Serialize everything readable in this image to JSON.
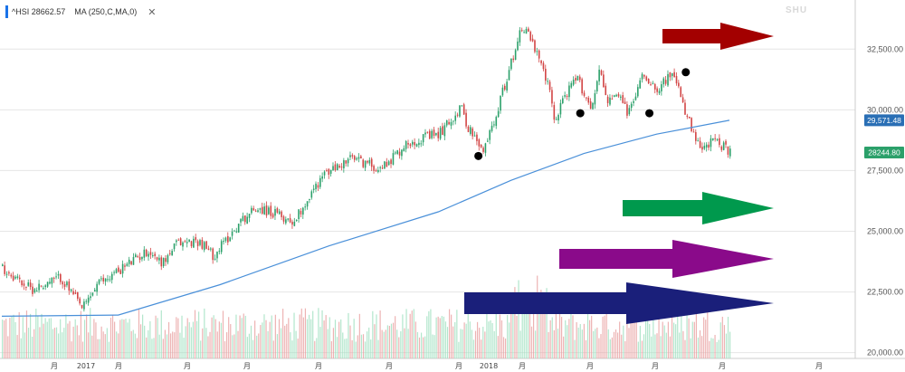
{
  "legend": {
    "symbol_label": "^HSI 28662.57",
    "ma_label": "MA (250,C,MA,0)",
    "close_icon": "close-icon",
    "close_glyph": "✕"
  },
  "watermark": "SHU",
  "chart_data": {
    "type": "candlestick",
    "title": "",
    "y_axis": {
      "range": [
        19800,
        34300
      ],
      "ticks": [
        20000,
        22500,
        25000,
        27500,
        30000,
        32500
      ],
      "tick_labels": [
        "20,000.00",
        "22,500.00",
        "25,000.00",
        "27,500.00",
        "30,000.00",
        "32,500.00"
      ],
      "position": "right"
    },
    "x_axis": {
      "labels": [
        "月",
        "2017",
        "月",
        "月",
        "月",
        "月",
        "月",
        "月",
        "2018",
        "月",
        "月",
        "月",
        "月",
        "月",
        "月"
      ]
    },
    "price_path": {
      "t": [
        0,
        0.04,
        0.08,
        0.11,
        0.13,
        0.16,
        0.2,
        0.22,
        0.24,
        0.27,
        0.29,
        0.33,
        0.35,
        0.4,
        0.44,
        0.48,
        0.52,
        0.56,
        0.6,
        0.63,
        0.64,
        0.66,
        0.68,
        0.69,
        0.7,
        0.71,
        0.72,
        0.75,
        0.76,
        0.77,
        0.79,
        0.81,
        0.82,
        0.83,
        0.85,
        0.86,
        0.88,
        0.9,
        0.92,
        0.93,
        0.95,
        0.96,
        0.98,
        1.0
      ],
      "close": [
        23500,
        22600,
        23100,
        21800,
        22800,
        23400,
        24200,
        23700,
        24500,
        24600,
        24000,
        25500,
        26000,
        25400,
        27300,
        28000,
        27600,
        28700,
        29000,
        30100,
        29300,
        28200,
        30000,
        31000,
        32000,
        33200,
        33400,
        31000,
        29500,
        30500,
        31300,
        30000,
        31800,
        30400,
        30500,
        29800,
        31500,
        30900,
        31500,
        30700,
        28900,
        28300,
        28800,
        28200
      ]
    },
    "moving_average": {
      "name": "MA (250,C,MA,0)",
      "t": [
        0,
        0.16,
        0.3,
        0.45,
        0.6,
        0.7,
        0.8,
        0.9,
        1.0
      ],
      "values": [
        21500,
        21550,
        22800,
        24400,
        25800,
        27100,
        28200,
        29000,
        29571.48
      ]
    },
    "last_price_label": "28244.80",
    "ma_price_label": "29571.48",
    "ma_label_display": "29,571.48",
    "volume": {
      "shown": true,
      "colors": [
        "#e8a0a0",
        "#9fe0bf"
      ]
    },
    "annotations": {
      "markers": [
        {
          "t": 0.655,
          "value": 28100
        },
        {
          "t": 0.795,
          "value": 29860
        },
        {
          "t": 0.89,
          "value": 29860
        },
        {
          "t": 0.94,
          "value": 31550
        }
      ],
      "arrows": [
        {
          "color": "#a30000",
          "name": "red-arrow"
        },
        {
          "color": "#00994d",
          "name": "green-arrow"
        },
        {
          "color": "#8a0a8a",
          "name": "purple-arrow"
        },
        {
          "color": "#1a1f7a",
          "name": "navy-arrow"
        }
      ]
    },
    "colors": {
      "up": "#2ba06a",
      "down": "#d24545",
      "ma_line": "#4a90d9",
      "last_price_bg": "#2ba06a",
      "ma_price_bg": "#2a6fb5",
      "grid": "#e6e6e6"
    },
    "grid": true,
    "legend_position": "top-left"
  }
}
